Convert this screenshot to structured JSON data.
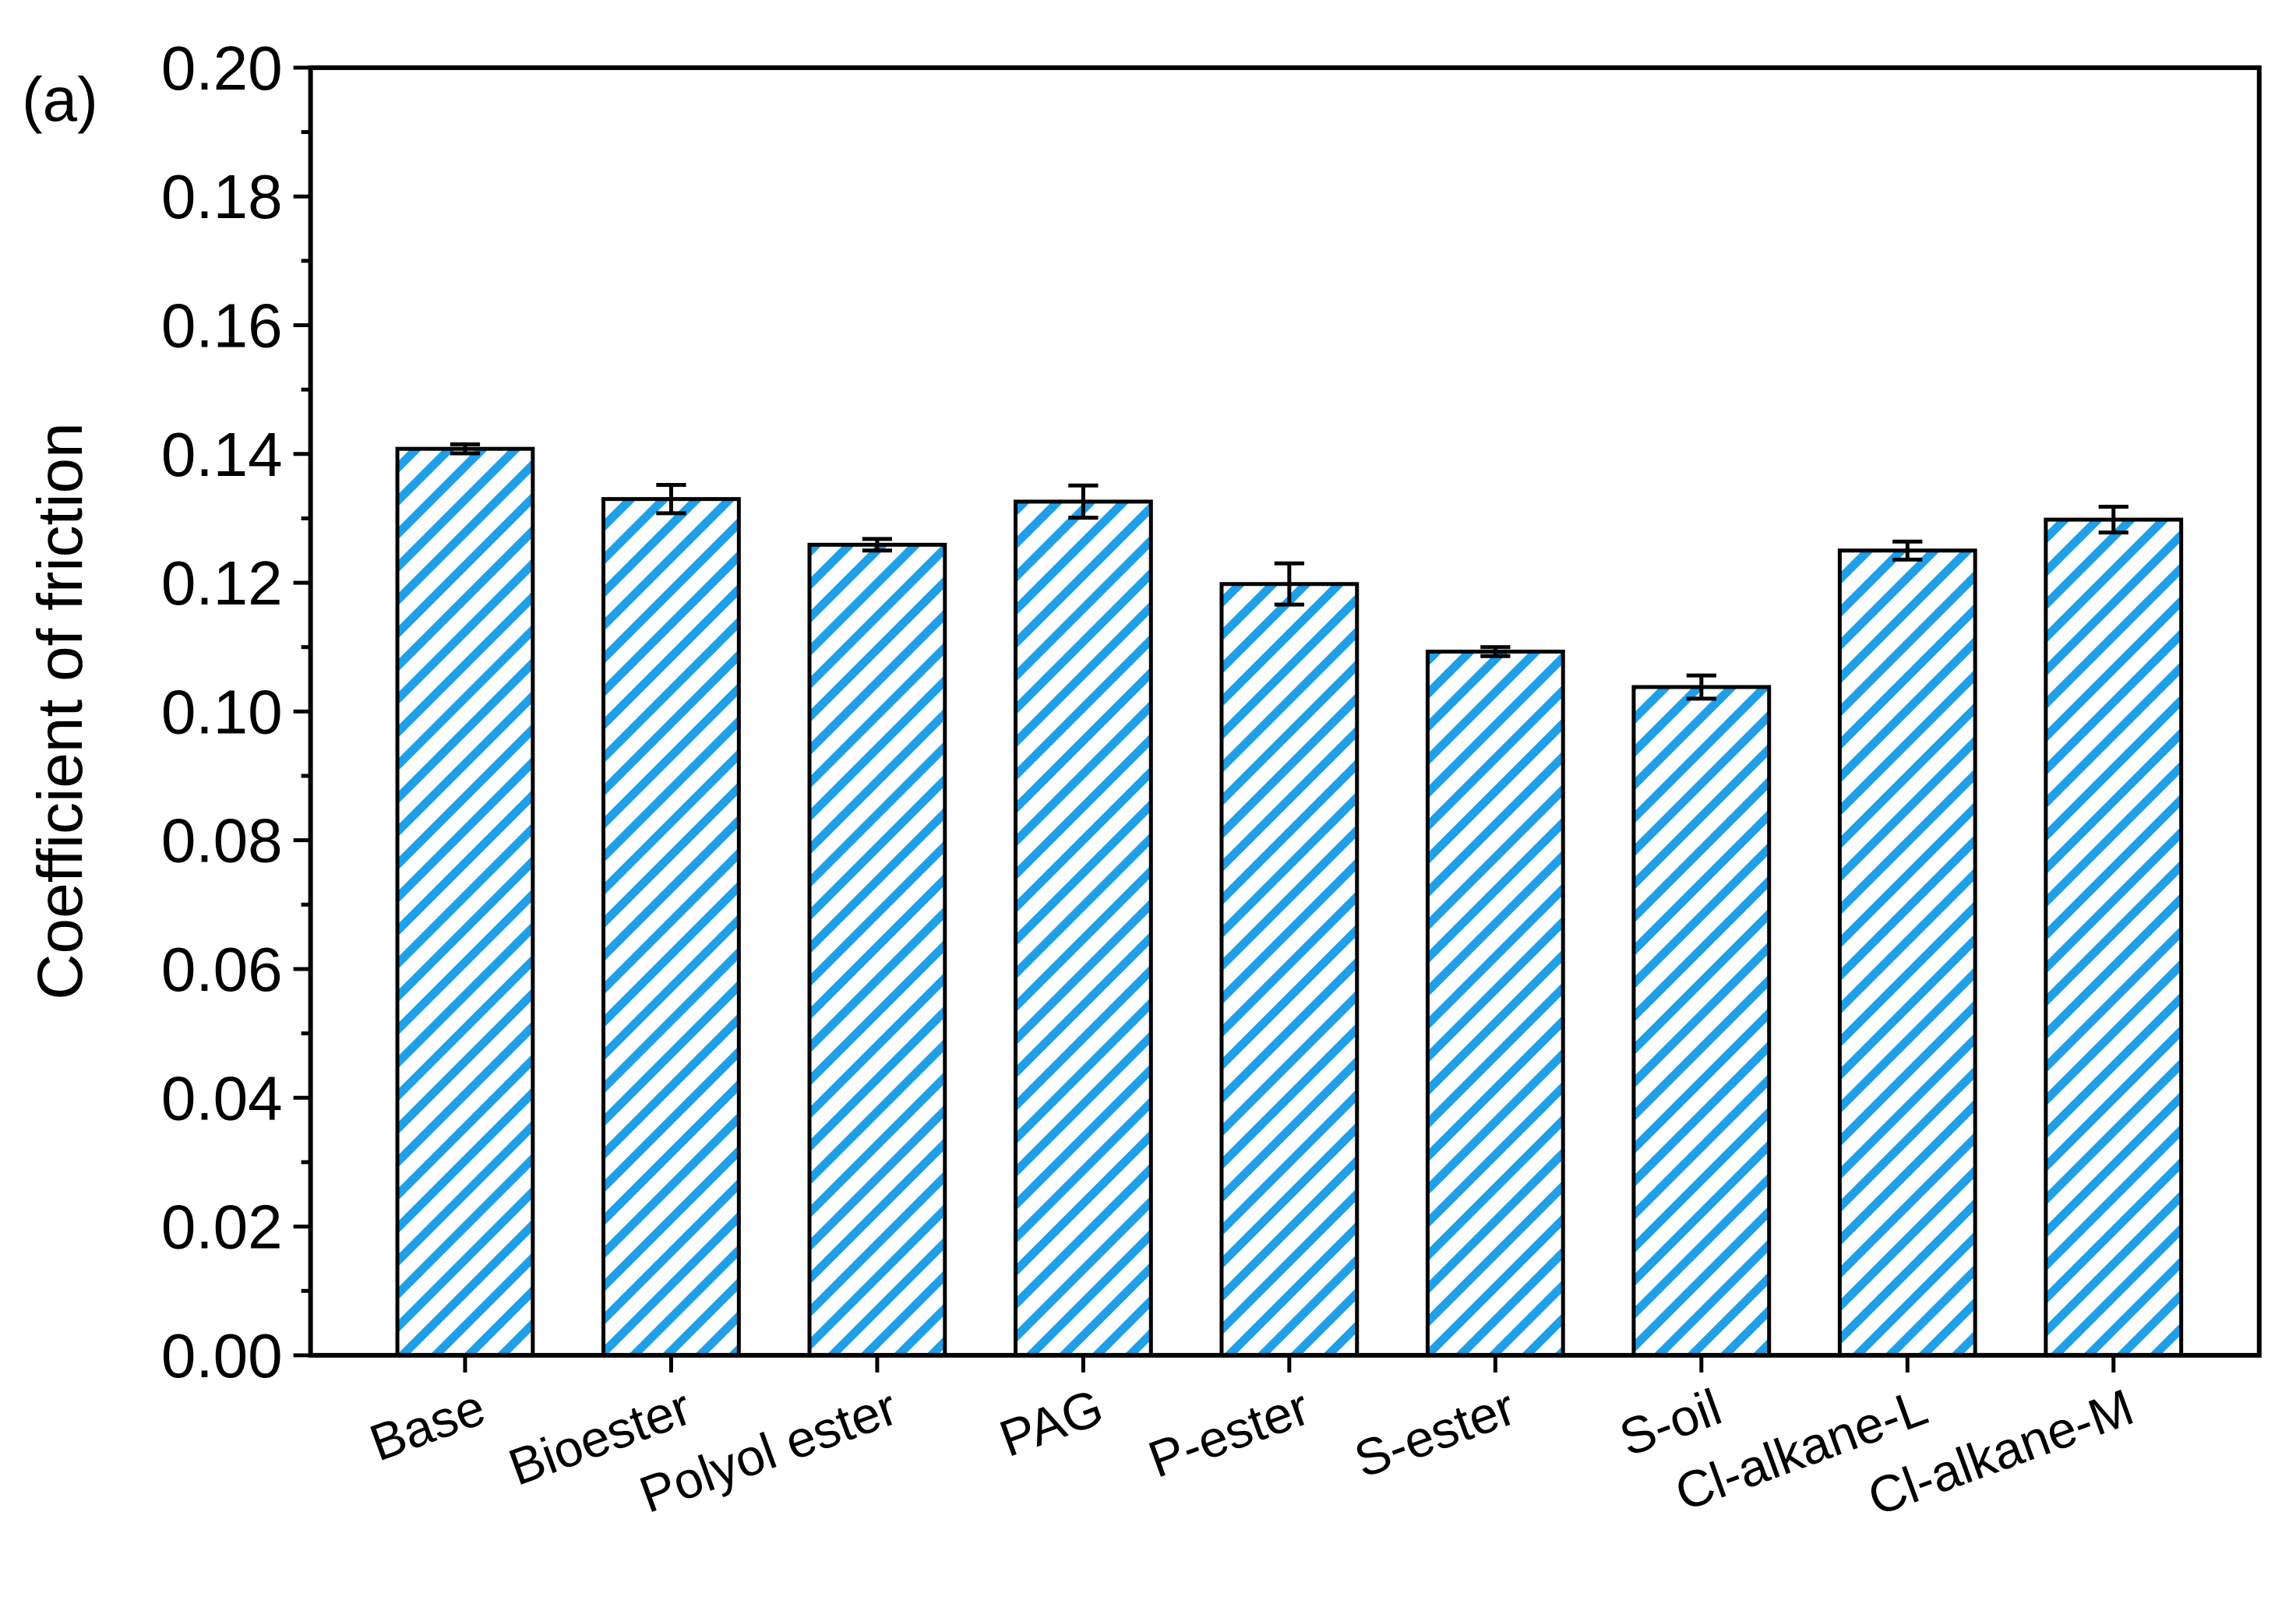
{
  "chart_data": {
    "type": "bar",
    "annotation": "(a)",
    "y_label": "Coefficient of friction",
    "categories": [
      "Base",
      "Bioester",
      "Polyol ester",
      "PAG",
      "P-ester",
      "S-ester",
      "S-oil",
      "Cl-alkane-L",
      "Cl-alkane-M"
    ],
    "values": [
      0.1408,
      0.133,
      0.1259,
      0.1326,
      0.1198,
      0.1093,
      0.1038,
      0.125,
      0.1298
    ],
    "errors": [
      0.0007,
      0.0022,
      0.0009,
      0.0025,
      0.0032,
      0.0007,
      0.0018,
      0.0014,
      0.002
    ],
    "color": "#1f9fe8",
    "hatch": "diagonal",
    "ylim": [
      0,
      0.2
    ],
    "yticks": [
      {
        "value": 0,
        "label": "0.00"
      },
      0.02,
      0.04,
      0.06,
      0.08,
      {
        "value": 0.1,
        "label": "0.10"
      },
      0.12,
      0.14,
      0.16,
      0.18,
      {
        "value": 0.2,
        "label": "0.20"
      }
    ],
    "grid": false
  }
}
